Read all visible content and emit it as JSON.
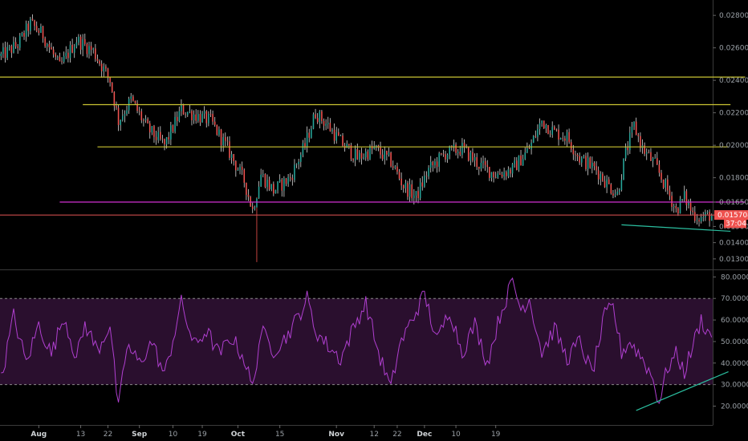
{
  "chart_data": {
    "type": "candlestick",
    "price_axis": {
      "ylim": [
        0.0125,
        0.0287
      ],
      "ticks": [
        0.013,
        0.014,
        0.015,
        0.0165,
        0.018,
        0.02,
        0.022,
        0.024,
        0.026,
        0.028
      ],
      "tick_labels": [
        "0.013000",
        "0.014000",
        "0.015000",
        "0.016500",
        "0.018000",
        "0.020000",
        "0.022000",
        "0.024000",
        "0.026000",
        "0.028000"
      ]
    },
    "last_price": {
      "value": 0.015704,
      "label": "0.015704",
      "color": "#ef5350"
    },
    "countdown": {
      "value": 0.0152,
      "label": "37:04",
      "color": "#ef5350"
    },
    "rsi_axis": {
      "ylim": [
        12,
        82
      ],
      "ticks": [
        20,
        30,
        40,
        50,
        60,
        70,
        80
      ],
      "tick_labels": [
        "20.0000",
        "30.0000",
        "40.0000",
        "50.0000",
        "60.0000",
        "70.0000",
        "80.0000"
      ],
      "band": [
        30,
        70
      ],
      "band_color": "#2a0f2e",
      "line_color": "#b03fd0"
    },
    "time_axis": {
      "ticks": [
        {
          "label": "Aug",
          "bold": true
        },
        {
          "label": "13",
          "bold": false
        },
        {
          "label": "22",
          "bold": false
        },
        {
          "label": "Sep",
          "bold": true
        },
        {
          "label": "10",
          "bold": false
        },
        {
          "label": "19",
          "bold": false
        },
        {
          "label": "Oct",
          "bold": true
        },
        {
          "label": "15",
          "bold": false
        },
        {
          "label": "Nov",
          "bold": true
        },
        {
          "label": "12",
          "bold": false
        },
        {
          "label": "22",
          "bold": false
        },
        {
          "label": "Dec",
          "bold": true
        },
        {
          "label": "10",
          "bold": false
        },
        {
          "label": "19",
          "bold": false
        }
      ]
    },
    "anchors": [
      [
        0,
        0.0255
      ],
      [
        8,
        0.0262
      ],
      [
        14,
        0.0275
      ],
      [
        20,
        0.0268
      ],
      [
        28,
        0.0248
      ],
      [
        36,
        0.0265
      ],
      [
        44,
        0.0258
      ],
      [
        52,
        0.024
      ],
      [
        56,
        0.0215
      ],
      [
        62,
        0.0228
      ],
      [
        70,
        0.021
      ],
      [
        78,
        0.02
      ],
      [
        86,
        0.0222
      ],
      [
        94,
        0.0218
      ],
      [
        100,
        0.0215
      ],
      [
        108,
        0.0198
      ],
      [
        116,
        0.0178
      ],
      [
        120,
        0.016
      ],
      [
        124,
        0.0182
      ],
      [
        130,
        0.0172
      ],
      [
        138,
        0.018
      ],
      [
        145,
        0.02
      ],
      [
        150,
        0.022
      ],
      [
        156,
        0.0212
      ],
      [
        162,
        0.0202
      ],
      [
        170,
        0.0192
      ],
      [
        178,
        0.0198
      ],
      [
        186,
        0.019
      ],
      [
        192,
        0.0175
      ],
      [
        198,
        0.0168
      ],
      [
        204,
        0.0185
      ],
      [
        212,
        0.0195
      ],
      [
        220,
        0.0198
      ],
      [
        228,
        0.0188
      ],
      [
        236,
        0.0182
      ],
      [
        244,
        0.0185
      ],
      [
        252,
        0.0198
      ],
      [
        258,
        0.0215
      ],
      [
        264,
        0.0208
      ],
      [
        270,
        0.0205
      ],
      [
        276,
        0.0192
      ],
      [
        284,
        0.0185
      ],
      [
        290,
        0.0175
      ],
      [
        294,
        0.017
      ],
      [
        298,
        0.0195
      ],
      [
        302,
        0.0212
      ],
      [
        306,
        0.0198
      ],
      [
        312,
        0.0188
      ],
      [
        318,
        0.0172
      ],
      [
        322,
        0.016
      ],
      [
        326,
        0.0168
      ],
      [
        330,
        0.0158
      ],
      [
        334,
        0.0155
      ],
      [
        338,
        0.0157
      ]
    ],
    "extreme_wick": {
      "index": 122,
      "low": 0.0128
    },
    "rsi_anchors": [
      [
        0,
        32
      ],
      [
        6,
        62
      ],
      [
        12,
        40
      ],
      [
        18,
        58
      ],
      [
        24,
        44
      ],
      [
        30,
        62
      ],
      [
        36,
        42
      ],
      [
        40,
        58
      ],
      [
        46,
        46
      ],
      [
        52,
        58
      ],
      [
        56,
        18
      ],
      [
        60,
        48
      ],
      [
        66,
        40
      ],
      [
        72,
        50
      ],
      [
        78,
        34
      ],
      [
        86,
        68
      ],
      [
        92,
        48
      ],
      [
        98,
        55
      ],
      [
        104,
        44
      ],
      [
        110,
        52
      ],
      [
        116,
        42
      ],
      [
        120,
        28
      ],
      [
        124,
        55
      ],
      [
        130,
        46
      ],
      [
        136,
        52
      ],
      [
        142,
        62
      ],
      [
        146,
        70
      ],
      [
        150,
        55
      ],
      [
        156,
        48
      ],
      [
        162,
        42
      ],
      [
        168,
        56
      ],
      [
        174,
        68
      ],
      [
        180,
        45
      ],
      [
        186,
        28
      ],
      [
        190,
        48
      ],
      [
        196,
        60
      ],
      [
        202,
        72
      ],
      [
        208,
        50
      ],
      [
        214,
        65
      ],
      [
        220,
        45
      ],
      [
        226,
        58
      ],
      [
        232,
        40
      ],
      [
        238,
        62
      ],
      [
        244,
        78
      ],
      [
        248,
        65
      ],
      [
        252,
        70
      ],
      [
        258,
        45
      ],
      [
        264,
        56
      ],
      [
        270,
        42
      ],
      [
        276,
        50
      ],
      [
        282,
        35
      ],
      [
        288,
        62
      ],
      [
        292,
        66
      ],
      [
        296,
        45
      ],
      [
        300,
        50
      ],
      [
        306,
        42
      ],
      [
        310,
        35
      ],
      [
        314,
        22
      ],
      [
        318,
        38
      ],
      [
        322,
        44
      ],
      [
        326,
        36
      ],
      [
        330,
        48
      ],
      [
        334,
        60
      ],
      [
        338,
        53
      ]
    ],
    "price_lines": [
      {
        "name": "resistance-top",
        "y1": 0.0242,
        "y2": 0.0242,
        "t1": -6,
        "t2": 355,
        "color": "#c9c332"
      },
      {
        "name": "resistance-mid",
        "y1": 0.0225,
        "y2": 0.0225,
        "t1": 39,
        "t2": 348,
        "color": "#c9c332"
      },
      {
        "name": "resistance-low",
        "y1": 0.0199,
        "y2": 0.0199,
        "t1": 46,
        "t2": 347,
        "color": "#c9c332"
      },
      {
        "name": "support",
        "y1": 0.0165,
        "y2": 0.0165,
        "t1": 28,
        "t2": 355,
        "color": "#cf30cf"
      },
      {
        "name": "price-level",
        "y1": 0.0157,
        "y2": 0.0157,
        "t1": -6,
        "t2": 355,
        "color": "#c94a4a"
      },
      {
        "name": "trend-low",
        "y1": 0.0151,
        "y2": 0.0147,
        "t1": 296,
        "t2": 348,
        "color": "#2bbfa0"
      }
    ],
    "rsi_trend": {
      "v1": 18,
      "v2": 36,
      "t1": 303,
      "t2": 347,
      "color": "#2bbfa0"
    },
    "colors": {
      "up": "#26a69a",
      "down": "#ef5350",
      "wick": "#d9d9d9",
      "border": "#3a3a3a"
    }
  }
}
